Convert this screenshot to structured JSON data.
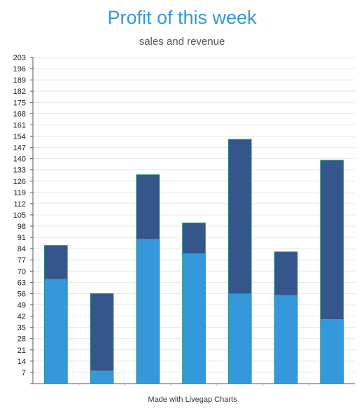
{
  "title": "Profit of this week",
  "subtitle": "sales and revenue",
  "credit": "Made with Livegap Charts",
  "colors": {
    "title": "#3498db",
    "series_bottom": "#3498db",
    "series_top": "#34568b",
    "bar_edge": "#1f8f7a",
    "grid": "#e6e6e6",
    "axis": "#555555"
  },
  "chart_data": {
    "type": "bar",
    "stacked": true,
    "categories": [
      "",
      "",
      "",
      "",
      "",
      "",
      ""
    ],
    "series": [
      {
        "values": [
          65,
          8,
          90,
          81,
          56,
          55,
          40
        ]
      },
      {
        "values": [
          21,
          48,
          40,
          19,
          96,
          27,
          99
        ]
      }
    ],
    "ylim": [
      0,
      203
    ],
    "yticks": [
      7,
      14,
      21,
      28,
      35,
      42,
      49,
      56,
      63,
      70,
      77,
      84,
      91,
      98,
      105,
      112,
      119,
      126,
      133,
      140,
      147,
      154,
      161,
      168,
      175,
      182,
      189,
      196,
      203
    ],
    "grid": true,
    "legend": "none"
  }
}
